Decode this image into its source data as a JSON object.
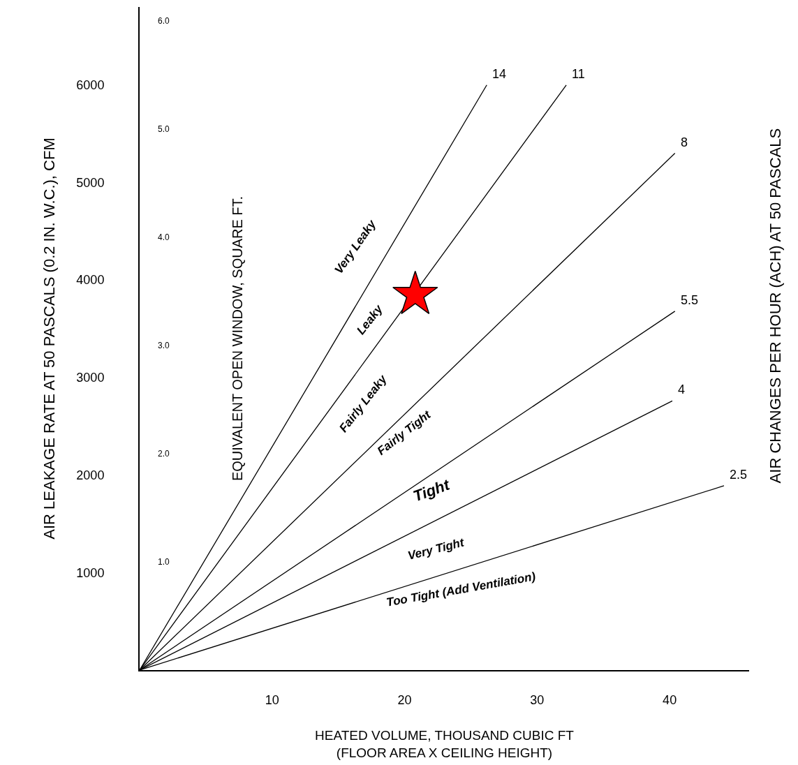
{
  "chart_data": {
    "type": "line",
    "xlabel": "HEATED VOLUME, THOUSAND CUBIC FT\n(FLOOR AREA X CEILING HEIGHT)",
    "ylabel": "AIR LEAKAGE RATE AT 50 PASCALS (0.2 IN. W.C.), CFM",
    "y2label": "EQUIVALENT OPEN WINDOW, SQUARE FT.",
    "legend_title": "AIR CHANGES PER HOUR (ACH) AT 50 PASCALS",
    "xlim": [
      0,
      46
    ],
    "xticks": [
      10,
      20,
      30,
      40
    ],
    "ylim": [
      0,
      6800
    ],
    "yticks": [
      1000,
      2000,
      3000,
      4000,
      5000,
      6000
    ],
    "y2lim": [
      0,
      6.13
    ],
    "y2ticks": [
      {
        "value": 1,
        "label": "1.0"
      },
      {
        "value": 2,
        "label": "2.0"
      },
      {
        "value": 3,
        "label": "3.0"
      },
      {
        "value": 4,
        "label": "4.0"
      },
      {
        "value": 5,
        "label": "5.0"
      },
      {
        "value": 6,
        "label": "6.0"
      }
    ],
    "line_style": "solid",
    "marker": "none",
    "series": [
      {
        "name": "14",
        "color": "#000000",
        "x": [
          0,
          26.2
        ],
        "values": [
          0,
          6000
        ]
      },
      {
        "name": "11",
        "color": "#000000",
        "x": [
          0,
          32.2
        ],
        "values": [
          0,
          6000
        ]
      },
      {
        "name": "8",
        "color": "#000000",
        "x": [
          0,
          40.4
        ],
        "values": [
          0,
          5300
        ]
      },
      {
        "name": "5.5",
        "color": "#000000",
        "x": [
          0,
          40.4
        ],
        "values": [
          0,
          3680
        ]
      },
      {
        "name": "4",
        "color": "#000000",
        "x": [
          0,
          40.2
        ],
        "values": [
          0,
          2760
        ]
      },
      {
        "name": "2.5",
        "color": "#000000",
        "x": [
          0,
          44.1
        ],
        "values": [
          0,
          1890
        ]
      },
      {
        "type": "scatter",
        "marker": "star",
        "color": "#ff0000",
        "x": [
          20.8
        ],
        "values": [
          3850
        ]
      }
    ],
    "annotations": [
      "Very Leaky",
      "Leaky",
      "Fairly Leaky",
      "Fairly Tight",
      "Tight",
      "Very Tight",
      "Too Tight (Add Ventilation)"
    ]
  }
}
